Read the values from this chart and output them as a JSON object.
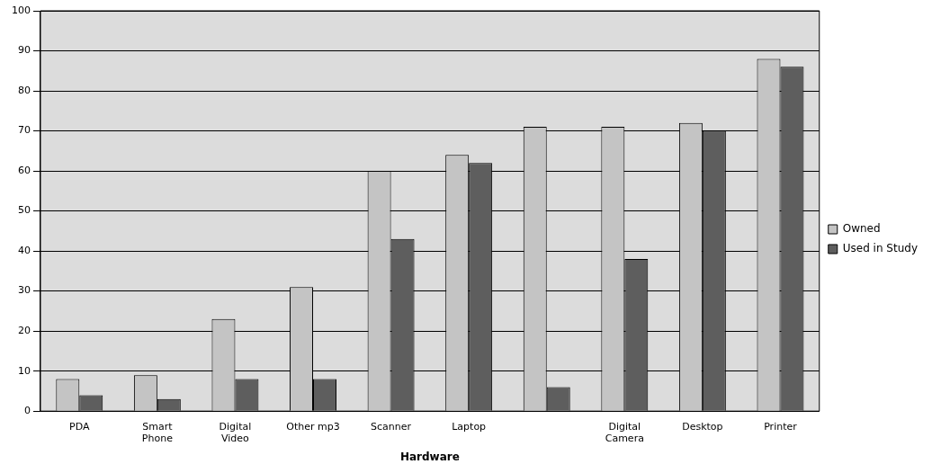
{
  "chart_data": {
    "type": "bar",
    "xlabel": "Hardware",
    "categories": [
      "PDA",
      "Smart Phone",
      "Digital Video",
      "Other mp3",
      "Scanner",
      "Laptop",
      null,
      "Digital Camera",
      "Desktop",
      "Printer"
    ],
    "series": [
      {
        "name": "Owned",
        "color": "#c4c4c4",
        "values": [
          8,
          9,
          23,
          31,
          60,
          64,
          71,
          71,
          72,
          88
        ]
      },
      {
        "name": "Used in Study",
        "color": "#5e5e5e",
        "values": [
          4,
          3,
          8,
          8,
          43,
          62,
          6,
          38,
          70,
          86
        ]
      }
    ],
    "ylim": [
      0,
      100
    ],
    "yticks": [
      0,
      10,
      20,
      30,
      40,
      50,
      60,
      70,
      80,
      90,
      100
    ],
    "grid": "y",
    "legend": "right"
  }
}
